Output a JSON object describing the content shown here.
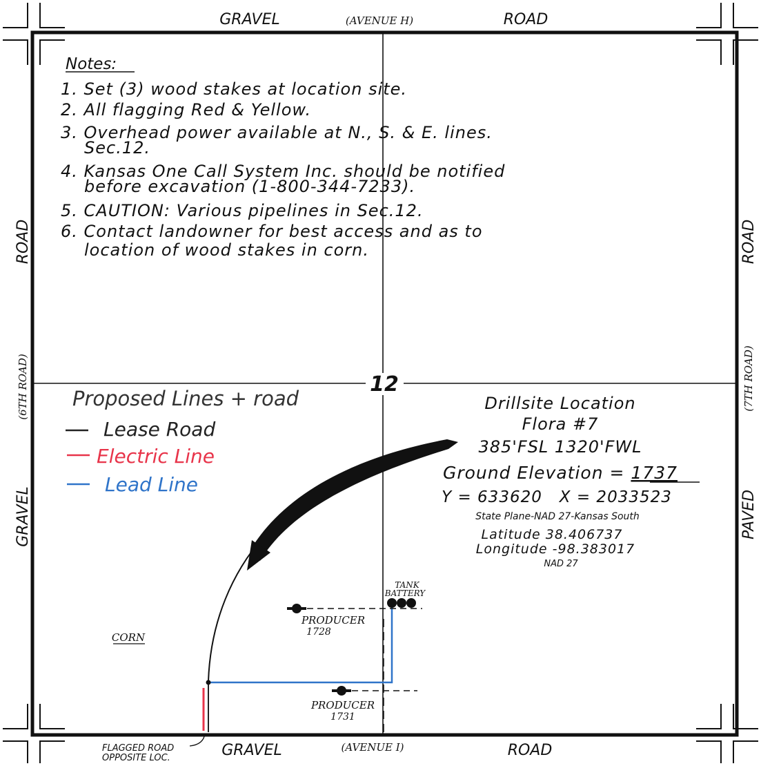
{
  "roads": {
    "top_left": "GRAVEL",
    "top_center": "(AVENUE H)",
    "top_right": "ROAD",
    "bottom_left": "GRAVEL",
    "bottom_center": "(AVENUE I)",
    "bottom_right": "ROAD",
    "left_upper": "ROAD",
    "left_middle": "(6TH ROAD)",
    "left_lower": "GRAVEL",
    "right_upper": "ROAD",
    "right_middle": "(7TH ROAD)",
    "right_lower": "PAVED"
  },
  "notes": {
    "title": "Notes:",
    "items": [
      "1. Set (3) wood stakes at location site.",
      "2. All flagging Red & Yellow.",
      "3. Overhead power available at N., S. & E. lines.",
      "Sec.12.",
      "4. Kansas One Call System Inc. should be notified",
      "before excavation (1-800-344-7233).",
      "5. CAUTION: Various pipelines in Sec.12.",
      "6. Contact landowner for best access and as to",
      "location of wood stakes in corn."
    ]
  },
  "section_number": "12",
  "legend": {
    "title": "Proposed Lines + road",
    "items": [
      {
        "label": "Lease Road",
        "color": "#222222"
      },
      {
        "label": "Electric Line",
        "color": "#e8344a"
      },
      {
        "label": "Lead Line",
        "color": "#2f74c9"
      }
    ]
  },
  "location": {
    "title": "Drillsite Location",
    "well": "Flora #7",
    "footage": "385'FSL 1320'FWL",
    "elevation_label": "Ground Elevation = ",
    "elevation_value": "1737",
    "coords": "Y = 633620   X = 2033523",
    "datum": "State Plane-NAD 27-Kansas South",
    "latitude": "Latitude 38.406737",
    "longitude": "Longitude -98.383017",
    "nad": "NAD 27"
  },
  "features": {
    "tank_line1": "TANK",
    "tank_line2": "BATTERY",
    "producer1_label": "PRODUCER",
    "producer1_elev": "1728",
    "producer2_label": "PRODUCER",
    "producer2_elev": "1731",
    "corn": "CORN",
    "flagged_line1": "FLAGGED ROAD",
    "flagged_line2": "OPPOSITE LOC."
  },
  "colors": {
    "lease_road": "#222222",
    "electric_line": "#e8344a",
    "lead_line": "#2f74c9"
  }
}
